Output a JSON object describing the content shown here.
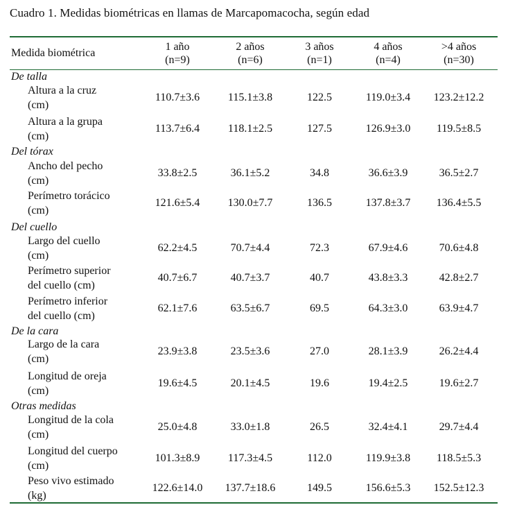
{
  "caption": "Cuadro 1.  Medidas biométricas en llamas de Marcapomacocha, según edad",
  "header": {
    "label": "Medida biométrica",
    "columns": [
      {
        "age": "1 año",
        "n": "(n=9)"
      },
      {
        "age": "2 años",
        "n": "(n=6)"
      },
      {
        "age": "3 años",
        "n": "(n=1)"
      },
      {
        "age": "4 años",
        "n": "(n=4)"
      },
      {
        "age": ">4 años",
        "n": "(n=30)"
      }
    ]
  },
  "sections": [
    {
      "title": "De talla",
      "rows": [
        {
          "label": [
            "Altura a la cruz",
            "(cm)"
          ],
          "values": [
            "110.7±3.6",
            "115.1±3.8",
            "122.5",
            "119.0±3.4",
            "123.2±12.2"
          ]
        },
        {
          "label": [
            "Altura a la grupa",
            "(cm)"
          ],
          "values": [
            "113.7±6.4",
            "118.1±2.5",
            "127.5",
            "126.9±3.0",
            "119.5±8.5"
          ]
        }
      ]
    },
    {
      "title": "Del tórax",
      "rows": [
        {
          "label": [
            "Ancho del pecho",
            "(cm)"
          ],
          "values": [
            "33.8±2.5",
            "36.1±5.2",
            "34.8",
            "36.6±3.9",
            "36.5±2.7"
          ]
        },
        {
          "label": [
            "Perímetro torácico",
            "(cm)"
          ],
          "values": [
            "121.6±5.4",
            "130.0±7.7",
            "136.5",
            "137.8±3.7",
            "136.4±5.5"
          ]
        }
      ]
    },
    {
      "title": "Del cuello",
      "rows": [
        {
          "label": [
            "Largo del cuello",
            "(cm)"
          ],
          "values": [
            "62.2±4.5",
            "70.7±4.4",
            "72.3",
            "67.9±4.6",
            "70.6±4.8"
          ]
        },
        {
          "label": [
            "Perímetro superior",
            "del cuello (cm)"
          ],
          "values": [
            "40.7±6.7",
            "40.7±3.7",
            "40.7",
            "43.8±3.3",
            "42.8±2.7"
          ]
        },
        {
          "label": [
            "Perímetro inferior",
            "del cuello (cm)"
          ],
          "values": [
            "62.1±7.6",
            "63.5±6.7",
            "69.5",
            "64.3±3.0",
            "63.9±4.7"
          ]
        }
      ]
    },
    {
      "title": "De la cara",
      "rows": [
        {
          "label": [
            "Largo de la cara",
            "(cm)"
          ],
          "values": [
            "23.9±3.8",
            "23.5±3.6",
            "27.0",
            "28.1±3.9",
            "26.2±4.4"
          ]
        },
        {
          "label": [
            "Longitud de oreja",
            "(cm)"
          ],
          "values": [
            "19.6±4.5",
            "20.1±4.5",
            "19.6",
            "19.4±2.5",
            "19.6±2.7"
          ]
        }
      ]
    },
    {
      "title": "Otras medidas",
      "rows": [
        {
          "label": [
            "Longitud de la cola",
            "(cm)"
          ],
          "values": [
            "25.0±4.8",
            "33.0±1.8",
            "26.5",
            "32.4±4.1",
            "29.7±4.4"
          ]
        },
        {
          "label": [
            "Longitud del cuerpo",
            "(cm)"
          ],
          "values": [
            "101.3±8.9",
            "117.3±4.5",
            "112.0",
            "119.9±3.8",
            "118.5±5.3"
          ]
        },
        {
          "label": [
            "Peso vivo estimado",
            "(kg)"
          ],
          "values": [
            "122.6±14.0",
            "137.7±18.6",
            "149.5",
            "156.6±5.3",
            "152.5±12.3"
          ]
        }
      ]
    }
  ]
}
